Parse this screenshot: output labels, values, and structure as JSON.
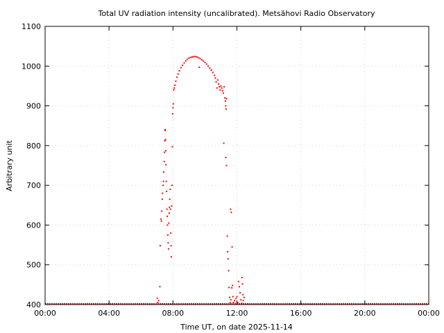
{
  "chart_data": {
    "type": "scatter",
    "title": "Total UV radiation intensity (uncalibrated). Metsähovi Radio Observatory",
    "xlabel": "Time UT, on date 2025-11-14",
    "ylabel": "Arbitrary unit",
    "xlim": [
      "00:00",
      "24:00"
    ],
    "ylim": [
      400,
      1100
    ],
    "x_ticks": [
      "00:00",
      "04:00",
      "08:00",
      "12:00",
      "16:00",
      "20:00",
      "00:00"
    ],
    "y_ticks": [
      400,
      500,
      600,
      700,
      800,
      900,
      1000,
      1100
    ],
    "grid": true,
    "marker_color": "#ff0000",
    "baseline": {
      "x": [
        0,
        24
      ],
      "y": 402
    },
    "series": [
      {
        "points": [
          [
            7.02,
            416
          ],
          [
            7.05,
            405
          ],
          [
            7.1,
            410
          ],
          [
            7.18,
            445
          ],
          [
            7.2,
            548
          ],
          [
            7.25,
            615
          ],
          [
            7.28,
            610
          ],
          [
            7.3,
            635
          ],
          [
            7.33,
            665
          ],
          [
            7.35,
            680
          ],
          [
            7.38,
            700
          ],
          [
            7.4,
            710
          ],
          [
            7.42,
            733
          ],
          [
            7.45,
            760
          ],
          [
            7.47,
            783
          ],
          [
            7.49,
            812
          ],
          [
            7.51,
            840
          ],
          [
            7.52,
            838
          ],
          [
            7.53,
            815
          ],
          [
            7.55,
            787
          ],
          [
            7.56,
            752
          ],
          [
            7.58,
            710
          ],
          [
            7.6,
            685
          ],
          [
            7.62,
            640
          ],
          [
            7.64,
            622
          ],
          [
            7.66,
            600
          ],
          [
            7.68,
            575
          ],
          [
            7.7,
            555
          ],
          [
            7.72,
            540
          ],
          [
            7.74,
            605
          ],
          [
            7.76,
            630
          ],
          [
            7.78,
            645
          ],
          [
            7.8,
            665
          ],
          [
            7.82,
            690
          ],
          [
            7.84,
            640
          ],
          [
            7.86,
            580
          ],
          [
            7.88,
            548
          ],
          [
            7.9,
            520
          ],
          [
            7.92,
            648
          ],
          [
            7.94,
            700
          ],
          [
            7.96,
            797
          ],
          [
            7.98,
            880
          ],
          [
            8.0,
            895
          ],
          [
            8.02,
            905
          ],
          [
            8.05,
            940
          ],
          [
            8.08,
            945
          ],
          [
            8.12,
            952
          ],
          [
            8.18,
            962
          ],
          [
            8.25,
            972
          ],
          [
            8.32,
            980
          ],
          [
            8.4,
            988
          ],
          [
            8.5,
            996
          ],
          [
            8.6,
            1002
          ],
          [
            8.7,
            1008
          ],
          [
            8.8,
            1013
          ],
          [
            8.9,
            1017
          ],
          [
            9.0,
            1020
          ],
          [
            9.1,
            1022
          ],
          [
            9.2,
            1023
          ],
          [
            9.3,
            1024
          ],
          [
            9.4,
            1024
          ],
          [
            9.5,
            1023
          ],
          [
            9.6,
            1021
          ],
          [
            9.7,
            1019
          ],
          [
            9.8,
            1016
          ],
          [
            9.9,
            1013
          ],
          [
            10.0,
            1009
          ],
          [
            10.1,
            1005
          ],
          [
            10.2,
            1000
          ],
          [
            10.3,
            995
          ],
          [
            10.4,
            990
          ],
          [
            10.5,
            984
          ],
          [
            10.6,
            977
          ],
          [
            10.65,
            970
          ],
          [
            10.7,
            960
          ],
          [
            10.75,
            945
          ],
          [
            10.8,
            965
          ],
          [
            10.85,
            955
          ],
          [
            10.9,
            948
          ],
          [
            10.95,
            940
          ],
          [
            11.0,
            950
          ],
          [
            11.05,
            945
          ],
          [
            11.1,
            938
          ],
          [
            11.15,
            932
          ],
          [
            11.2,
            948
          ],
          [
            11.25,
            920
          ],
          [
            11.28,
            912
          ],
          [
            11.3,
            900
          ],
          [
            11.32,
            892
          ],
          [
            11.35,
            918
          ],
          [
            9.65,
            997
          ],
          [
            10.4,
            990
          ],
          [
            11.18,
            806
          ],
          [
            11.3,
            770
          ],
          [
            11.35,
            750
          ],
          [
            11.4,
            572
          ],
          [
            11.42,
            533
          ],
          [
            11.45,
            515
          ],
          [
            11.48,
            485
          ],
          [
            11.5,
            443
          ],
          [
            11.55,
            418
          ],
          [
            11.58,
            405
          ],
          [
            11.6,
            640
          ],
          [
            11.65,
            632
          ],
          [
            11.7,
            545
          ],
          [
            11.62,
            412
          ],
          [
            11.68,
            442
          ],
          [
            11.72,
            448
          ],
          [
            11.75,
            420
          ],
          [
            11.78,
            405
          ],
          [
            11.85,
            410
          ],
          [
            11.9,
            402
          ],
          [
            11.95,
            415
          ],
          [
            12.0,
            420
          ],
          [
            12.05,
            405
          ],
          [
            12.1,
            458
          ],
          [
            12.15,
            445
          ],
          [
            12.2,
            430
          ],
          [
            12.25,
            412
          ],
          [
            12.3,
            403
          ],
          [
            12.32,
            468
          ],
          [
            12.35,
            452
          ],
          [
            12.38,
            425
          ],
          [
            12.4,
            410
          ],
          [
            12.45,
            418
          ]
        ]
      }
    ]
  }
}
